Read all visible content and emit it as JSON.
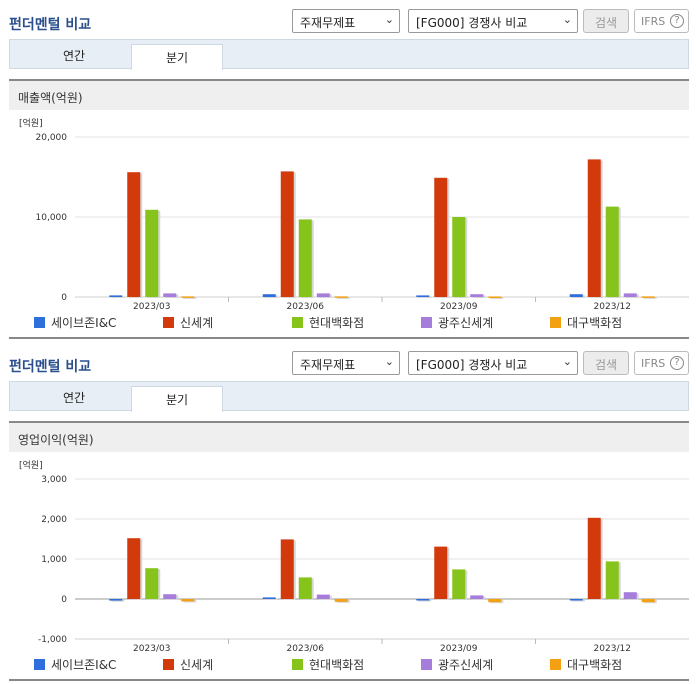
{
  "panels": [
    {
      "title": "펀더멘털 비교",
      "select1": "주재무제표",
      "select2": "[FG000] 경쟁사 비교",
      "search_label": "검색",
      "ifrs_label": "IFRS",
      "ifrs_help": "?",
      "tabs": [
        "연간",
        "분기"
      ],
      "active_tab": "분기",
      "section_title": "매출액(억원)"
    },
    {
      "title": "펀더멘털 비교",
      "select1": "주재무제표",
      "select2": "[FG000] 경쟁사 비교",
      "search_label": "검색",
      "ifrs_label": "IFRS",
      "ifrs_help": "?",
      "tabs": [
        "연간",
        "분기"
      ],
      "active_tab": "분기",
      "section_title": "영업이익(억원)"
    }
  ],
  "chart_data": [
    {
      "type": "bar",
      "unit_label": "[억원]",
      "categories": [
        "2023/03",
        "2023/06",
        "2023/09",
        "2023/12"
      ],
      "ylim": [
        0,
        20000
      ],
      "yticks": [
        "20,000",
        "10,000",
        "0"
      ],
      "ytick_values": [
        20000,
        10000,
        0
      ],
      "legend_position": "bottom",
      "series": [
        {
          "name": "세이브존I&C",
          "color": "#2f6fdb",
          "values": [
            200,
            350,
            200,
            350
          ]
        },
        {
          "name": "신세계",
          "color": "#d23a0b",
          "values": [
            15600,
            15700,
            14900,
            17200
          ]
        },
        {
          "name": "현대백화점",
          "color": "#86c31b",
          "values": [
            10900,
            9700,
            10000,
            11300
          ]
        },
        {
          "name": "광주신세계",
          "color": "#a77ddc",
          "values": [
            450,
            450,
            350,
            450
          ]
        },
        {
          "name": "대구백화점",
          "color": "#f3a013",
          "values": [
            80,
            80,
            70,
            80
          ]
        }
      ]
    },
    {
      "type": "bar",
      "unit_label": "[억원]",
      "categories": [
        "2023/03",
        "2023/06",
        "2023/09",
        "2023/12"
      ],
      "ylim": [
        -1000,
        3000
      ],
      "yticks": [
        "3,000",
        "2,000",
        "1,000",
        "0",
        "-1,000"
      ],
      "ytick_values": [
        3000,
        2000,
        1000,
        0,
        -1000
      ],
      "legend_position": "bottom",
      "series": [
        {
          "name": "세이브존I&C",
          "color": "#2f6fdb",
          "values": [
            -40,
            40,
            0,
            -30
          ]
        },
        {
          "name": "신세계",
          "color": "#d23a0b",
          "values": [
            1520,
            1490,
            1310,
            2030
          ]
        },
        {
          "name": "현대백화점",
          "color": "#86c31b",
          "values": [
            770,
            540,
            740,
            940
          ]
        },
        {
          "name": "광주신세계",
          "color": "#a77ddc",
          "values": [
            120,
            110,
            90,
            170
          ]
        },
        {
          "name": "대구백화점",
          "color": "#f3a013",
          "values": [
            -60,
            -70,
            -80,
            -80
          ]
        }
      ]
    }
  ]
}
